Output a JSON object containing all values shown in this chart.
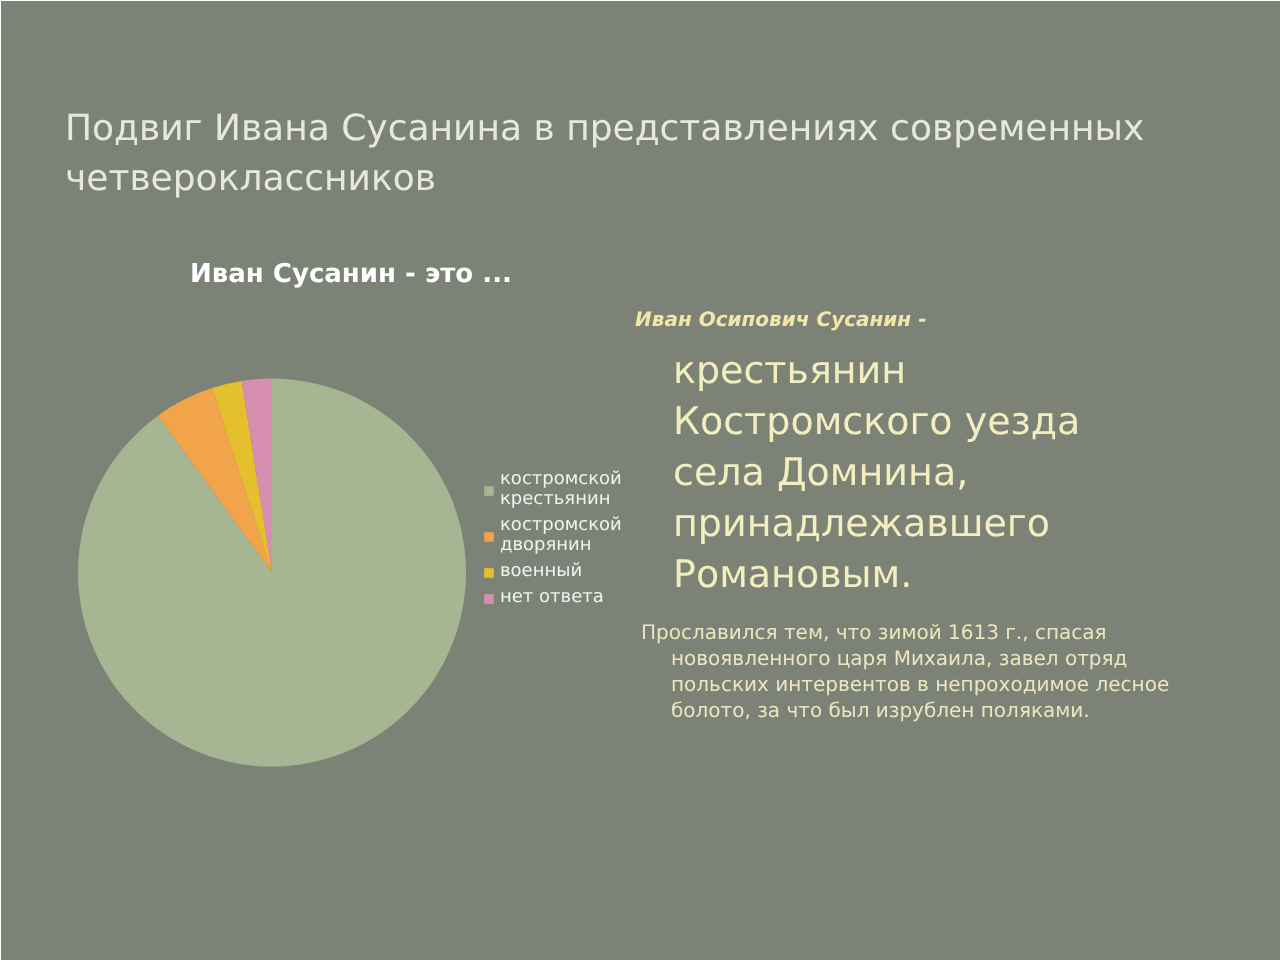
{
  "chart_data": {
    "type": "pie",
    "title": "Подвиг Ивана Сусанина в представлениях современных четвероклассников",
    "subtitle": "Иван Сусанин - это ...",
    "categories": [
      "костромской крестьянин",
      "костромской дворянин",
      "военный",
      "нет ответа"
    ],
    "values": [
      90,
      5,
      2.5,
      2.5
    ],
    "colors": [
      "#a6b693",
      "#f2a44a",
      "#e5c02e",
      "#d68fb0"
    ],
    "legend": "right",
    "annotations": [
      "Иван Осипович Сусанин -",
      "крестьянин Костромского уезда села  Домнина, принадлежавшего Романовым.",
      "Прославился тем, что зимой 1613 г., спасая новоявленного царя Михаила, завел отряд польских интервентов в непроходимое лесное болото, за что был изрублен поляками."
    ]
  }
}
